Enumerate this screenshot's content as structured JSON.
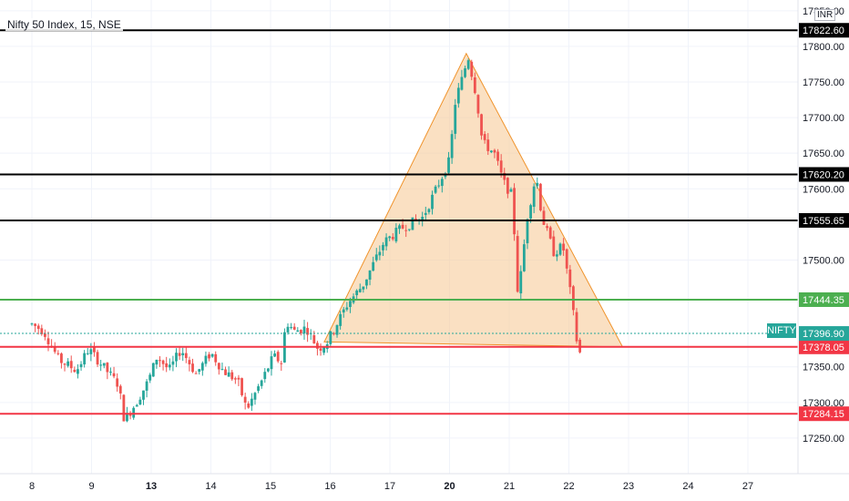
{
  "header": {
    "title": "Nifty 50 Index, 15, NSE",
    "currency": "INR"
  },
  "symbol_tag": "NIFTY",
  "colors": {
    "up": "#26a69a",
    "down": "#ef5350",
    "triangle_fill": "#f6cc9a",
    "triangle_stroke": "#f0932b",
    "black_line": "#000000",
    "green_line": "#4caf50",
    "red_line": "#f23645",
    "last_price": "#26a69a"
  },
  "chart_data": {
    "type": "candlestick",
    "ylim": [
      17200,
      17860
    ],
    "y_ticks": [
      17850,
      17800,
      17750,
      17700,
      17650,
      17600,
      17500,
      17350,
      17300,
      17250
    ],
    "y_tick_labels": [
      "17850.00",
      "17800.00",
      "17750.00",
      "17700.00",
      "17650.00",
      "17600.00",
      "17500.00",
      "17350.00",
      "17300.00",
      "17250.00"
    ],
    "x_ticks": [
      {
        "label": "8",
        "bold": false
      },
      {
        "label": "9",
        "bold": false
      },
      {
        "label": "13",
        "bold": true
      },
      {
        "label": "14",
        "bold": false
      },
      {
        "label": "15",
        "bold": false
      },
      {
        "label": "16",
        "bold": false
      },
      {
        "label": "17",
        "bold": false
      },
      {
        "label": "20",
        "bold": true
      },
      {
        "label": "21",
        "bold": false
      },
      {
        "label": "22",
        "bold": false
      },
      {
        "label": "23",
        "bold": false
      },
      {
        "label": "24",
        "bold": false
      },
      {
        "label": "27",
        "bold": false
      }
    ],
    "levels": [
      {
        "value": 17822.6,
        "label": "17822.60",
        "style": "black"
      },
      {
        "value": 17620.2,
        "label": "17620.20",
        "style": "black"
      },
      {
        "value": 17555.65,
        "label": "17555.65",
        "style": "black"
      },
      {
        "value": 17444.35,
        "label": "17444.35",
        "style": "green"
      },
      {
        "value": 17378.05,
        "label": "17378.05",
        "style": "red"
      },
      {
        "value": 17284.15,
        "label": "17284.15",
        "style": "red"
      }
    ],
    "last_price": {
      "value": 17396.9,
      "label": "17396.90"
    },
    "triangle": [
      [
        4.9,
        17385
      ],
      [
        7.28,
        17790
      ],
      [
        9.9,
        17378
      ]
    ],
    "price_path": [
      [
        0.0,
        17410
      ],
      [
        0.2,
        17400
      ],
      [
        0.45,
        17360
      ],
      [
        0.75,
        17345
      ],
      [
        0.95,
        17375
      ],
      [
        1.2,
        17350
      ],
      [
        1.45,
        17325
      ],
      [
        1.55,
        17275
      ],
      [
        1.75,
        17300
      ],
      [
        1.95,
        17330
      ],
      [
        2.1,
        17365
      ],
      [
        2.3,
        17345
      ],
      [
        2.5,
        17375
      ],
      [
        2.75,
        17340
      ],
      [
        3.0,
        17370
      ],
      [
        3.2,
        17345
      ],
      [
        3.45,
        17330
      ],
      [
        3.6,
        17290
      ],
      [
        3.85,
        17330
      ],
      [
        4.05,
        17365
      ],
      [
        4.2,
        17355
      ],
      [
        4.25,
        17415
      ],
      [
        4.4,
        17400
      ],
      [
        4.6,
        17405
      ],
      [
        4.8,
        17375
      ],
      [
        4.95,
        17385
      ],
      [
        5.3,
        17440
      ],
      [
        5.55,
        17465
      ],
      [
        5.9,
        17525
      ],
      [
        6.2,
        17545
      ],
      [
        6.55,
        17560
      ],
      [
        6.75,
        17595
      ],
      [
        7.0,
        17640
      ],
      [
        7.1,
        17725
      ],
      [
        7.25,
        17765
      ],
      [
        7.3,
        17790
      ],
      [
        7.45,
        17730
      ],
      [
        7.55,
        17665
      ],
      [
        7.75,
        17650
      ],
      [
        7.9,
        17610
      ],
      [
        8.05,
        17590
      ],
      [
        8.15,
        17445
      ],
      [
        8.3,
        17560
      ],
      [
        8.45,
        17620
      ],
      [
        8.55,
        17560
      ],
      [
        8.75,
        17510
      ],
      [
        8.9,
        17520
      ],
      [
        9.05,
        17440
      ],
      [
        9.15,
        17375
      ],
      [
        9.2,
        17367
      ]
    ]
  }
}
